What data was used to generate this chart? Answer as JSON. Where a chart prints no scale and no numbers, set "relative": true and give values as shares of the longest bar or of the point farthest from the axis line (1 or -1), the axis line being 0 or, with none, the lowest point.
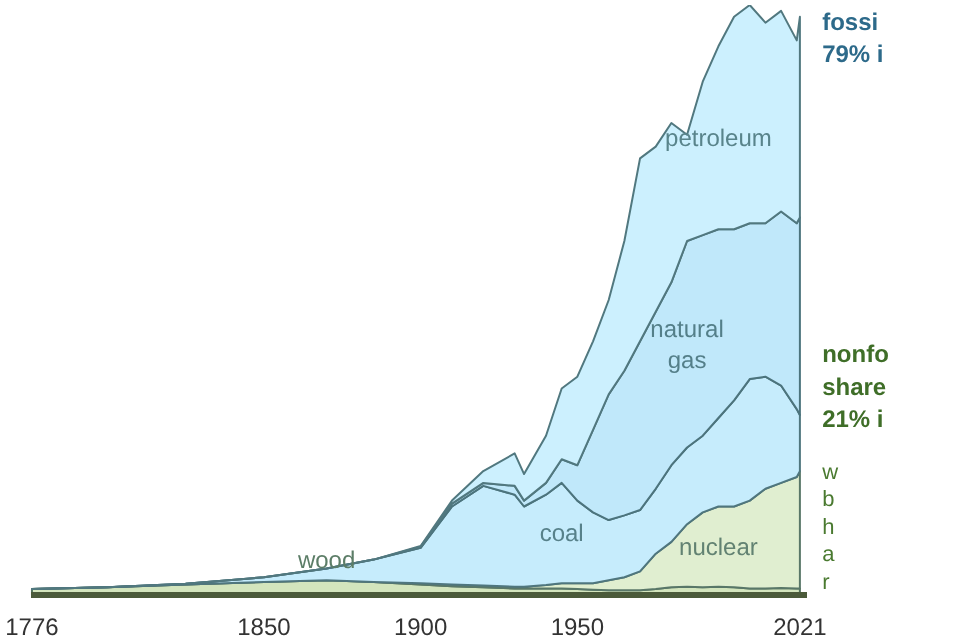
{
  "chart_data": {
    "type": "area",
    "stacked": true,
    "relative": true,
    "x": [
      1776,
      1800,
      1825,
      1850,
      1870,
      1885,
      1900,
      1910,
      1920,
      1930,
      1933,
      1940,
      1945,
      1950,
      1955,
      1960,
      1965,
      1970,
      1975,
      1980,
      1985,
      1990,
      1995,
      2000,
      2005,
      2010,
      2015,
      2020,
      2021
    ],
    "xlim": [
      1776,
      2023
    ],
    "xticks": [
      1776,
      1850,
      1900,
      1950,
      2021
    ],
    "series": [
      {
        "name": "wood",
        "color": "#d3e5bd",
        "values": [
          0.01,
          0.013,
          0.018,
          0.022,
          0.025,
          0.022,
          0.018,
          0.015,
          0.013,
          0.011,
          0.011,
          0.011,
          0.011,
          0.01,
          0.009,
          0.008,
          0.008,
          0.008,
          0.01,
          0.013,
          0.014,
          0.013,
          0.014,
          0.013,
          0.011,
          0.011,
          0.012,
          0.011,
          0.011
        ]
      },
      {
        "name": "nuclear",
        "color": "#e0eed0",
        "values": [
          0,
          0,
          0,
          0,
          0,
          0,
          0.002,
          0.003,
          0.003,
          0.003,
          0.003,
          0.006,
          0.009,
          0.01,
          0.011,
          0.017,
          0.022,
          0.032,
          0.06,
          0.077,
          0.106,
          0.127,
          0.136,
          0.137,
          0.149,
          0.169,
          0.178,
          0.189,
          0.199
        ]
      },
      {
        "name": "coal",
        "color": "#c6ecfc",
        "values": [
          0,
          0,
          0.001,
          0.008,
          0.02,
          0.038,
          0.06,
          0.132,
          0.169,
          0.156,
          0.136,
          0.153,
          0.17,
          0.14,
          0.12,
          0.102,
          0.105,
          0.104,
          0.11,
          0.13,
          0.13,
          0.13,
          0.15,
          0.18,
          0.206,
          0.19,
          0.165,
          0.115,
          0.095
        ]
      },
      {
        "name": "natural gas",
        "color": "#c0e8fa",
        "values": [
          0,
          0,
          0,
          0,
          0,
          0,
          0.002,
          0.005,
          0.005,
          0.015,
          0.01,
          0.02,
          0.04,
          0.06,
          0.14,
          0.213,
          0.245,
          0.286,
          0.3,
          0.31,
          0.35,
          0.34,
          0.32,
          0.29,
          0.264,
          0.26,
          0.295,
          0.315,
          0.335
        ]
      },
      {
        "name": "petroleum",
        "color": "#ccf0fe",
        "values": [
          0,
          0,
          0,
          0,
          0,
          0,
          0.001,
          0.005,
          0.02,
          0.055,
          0.045,
          0.08,
          0.12,
          0.15,
          0.15,
          0.16,
          0.22,
          0.31,
          0.28,
          0.27,
          0.18,
          0.26,
          0.31,
          0.36,
          0.37,
          0.34,
          0.34,
          0.31,
          0.34
        ]
      }
    ],
    "annotations": [
      "fossi\n79% i",
      "nonfo\nshare\n21% i",
      "w\nb\nh\na\nr"
    ]
  }
}
